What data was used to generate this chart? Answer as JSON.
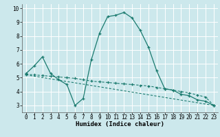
{
  "xlabel": "Humidex (Indice chaleur)",
  "xlim": [
    -0.5,
    23.5
  ],
  "ylim": [
    2.5,
    10.3
  ],
  "bg_color": "#cce8ec",
  "grid_color": "#ffffff",
  "line_color": "#1a7a6e",
  "series1_x": [
    0,
    1,
    2,
    3,
    4,
    5,
    6,
    7,
    8,
    9,
    10,
    11,
    12,
    13,
    14,
    15,
    16,
    17,
    18,
    19,
    20,
    21,
    22,
    23
  ],
  "series1_y": [
    5.3,
    5.85,
    6.5,
    5.3,
    4.85,
    4.5,
    3.0,
    3.5,
    6.3,
    8.2,
    9.4,
    9.5,
    9.7,
    9.3,
    8.4,
    7.2,
    5.5,
    4.2,
    4.1,
    3.8,
    3.7,
    3.4,
    3.3,
    3.0
  ],
  "series2_x": [
    0,
    1,
    2,
    3,
    4,
    5,
    6,
    7,
    8,
    9,
    10,
    11,
    12,
    13,
    14,
    15,
    16,
    17,
    18,
    19,
    20,
    21,
    22,
    23
  ],
  "series2_y": [
    5.25,
    5.2,
    5.15,
    5.1,
    5.05,
    5.0,
    4.95,
    4.85,
    4.75,
    4.7,
    4.65,
    4.6,
    4.55,
    4.5,
    4.45,
    4.4,
    4.3,
    4.2,
    4.1,
    4.0,
    3.9,
    3.75,
    3.6,
    3.0
  ],
  "series3_x": [
    0,
    23
  ],
  "series3_y": [
    5.2,
    3.0
  ],
  "xticks": [
    0,
    1,
    2,
    3,
    4,
    5,
    6,
    7,
    8,
    9,
    10,
    11,
    12,
    13,
    14,
    15,
    16,
    17,
    18,
    19,
    20,
    21,
    22,
    23
  ],
  "yticks": [
    3,
    4,
    5,
    6,
    7,
    8,
    9,
    10
  ],
  "tick_fontsize": 5.5,
  "xlabel_fontsize": 6.5
}
